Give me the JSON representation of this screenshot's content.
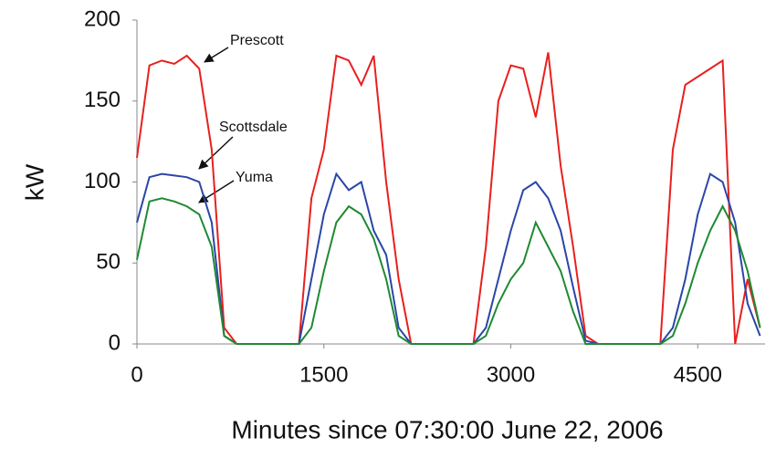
{
  "chart_data": {
    "type": "line",
    "x_label": "Minutes since 07:30:00 June 22, 2006",
    "y_label": "kW",
    "x": [
      0,
      100,
      200,
      300,
      400,
      500,
      600,
      700,
      800,
      900,
      1000,
      1100,
      1200,
      1300,
      1400,
      1500,
      1600,
      1700,
      1800,
      1900,
      2000,
      2100,
      2200,
      2300,
      2400,
      2500,
      2600,
      2700,
      2800,
      2900,
      3000,
      3100,
      3200,
      3300,
      3400,
      3500,
      3600,
      3700,
      3800,
      3900,
      4000,
      4100,
      4200,
      4300,
      4400,
      4500,
      4600,
      4700,
      4800,
      4900,
      5000
    ],
    "series": [
      {
        "name": "Prescott",
        "color": "#e8201e",
        "values": [
          115,
          172,
          175,
          173,
          178,
          170,
          120,
          10,
          0,
          0,
          0,
          0,
          0,
          0,
          90,
          120,
          178,
          175,
          160,
          178,
          100,
          40,
          0,
          0,
          0,
          0,
          0,
          0,
          60,
          150,
          172,
          170,
          140,
          180,
          110,
          60,
          5,
          0,
          0,
          0,
          0,
          0,
          0,
          120,
          160,
          165,
          170,
          175,
          0,
          40,
          10
        ]
      },
      {
        "name": "Scottsdale",
        "color": "#2a46a8",
        "values": [
          75,
          103,
          105,
          104,
          103,
          100,
          75,
          5,
          0,
          0,
          0,
          0,
          0,
          0,
          40,
          80,
          105,
          95,
          100,
          70,
          55,
          10,
          0,
          0,
          0,
          0,
          0,
          0,
          10,
          40,
          70,
          95,
          100,
          90,
          70,
          35,
          2,
          0,
          0,
          0,
          0,
          0,
          0,
          10,
          40,
          80,
          105,
          100,
          75,
          25,
          5
        ]
      },
      {
        "name": "Yuma",
        "color": "#1f8a32",
        "values": [
          52,
          88,
          90,
          88,
          85,
          80,
          60,
          5,
          0,
          0,
          0,
          0,
          0,
          0,
          10,
          45,
          75,
          85,
          80,
          65,
          40,
          5,
          0,
          0,
          0,
          0,
          0,
          0,
          5,
          25,
          40,
          50,
          75,
          60,
          45,
          20,
          0,
          0,
          0,
          0,
          0,
          0,
          0,
          5,
          25,
          50,
          70,
          85,
          70,
          45,
          10
        ]
      }
    ],
    "xlim": [
      0,
      5040
    ],
    "ylim": [
      0,
      200
    ],
    "xticks": [
      0,
      1500,
      3000,
      4500
    ],
    "yticks": [
      0,
      50,
      100,
      150,
      200
    ],
    "grid": false
  }
}
